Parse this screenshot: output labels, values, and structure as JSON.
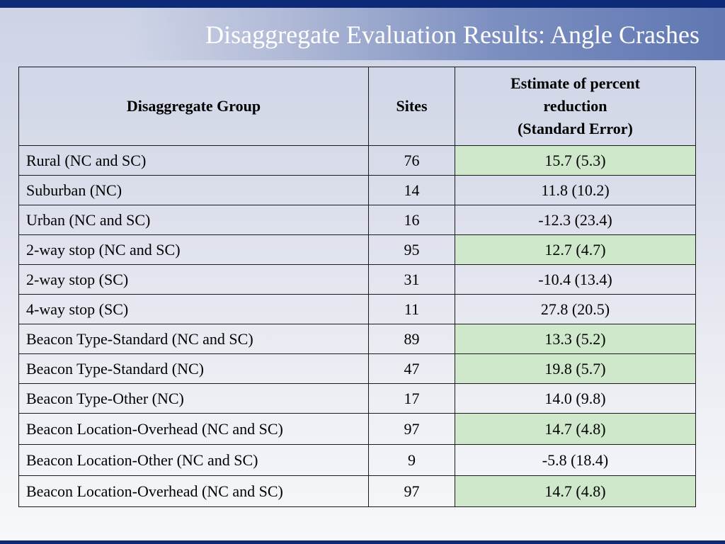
{
  "slide": {
    "title": "Disaggregate Evaluation Results: Angle Crashes"
  },
  "colors": {
    "top_bar": "#0d2a78",
    "highlight": "#cfe7cb",
    "title_text": "#ffffff"
  },
  "table": {
    "headers": {
      "group": "Disaggregate Group",
      "sites": "Sites",
      "estimate_line1": "Estimate of percent",
      "estimate_line2": "reduction",
      "estimate_line3": "(Standard Error)"
    },
    "rows": [
      {
        "group": "Rural (NC and SC)",
        "sites": "76",
        "estimate": "15.7 (5.3)",
        "highlighted": true
      },
      {
        "group": "Suburban (NC)",
        "sites": "14",
        "estimate": "11.8 (10.2)",
        "highlighted": false
      },
      {
        "group": "Urban (NC and SC)",
        "sites": "16",
        "estimate": "-12.3 (23.4)",
        "highlighted": false
      },
      {
        "group": "2-way stop (NC and SC)",
        "sites": "95",
        "estimate": "12.7 (4.7)",
        "highlighted": true
      },
      {
        "group": "2-way stop (SC)",
        "sites": "31",
        "estimate": "-10.4 (13.4)",
        "highlighted": false
      },
      {
        "group": "4-way stop (SC)",
        "sites": "11",
        "estimate": "27.8 (20.5)",
        "highlighted": false
      },
      {
        "group": "Beacon Type-Standard (NC and SC)",
        "sites": "89",
        "estimate": "13.3 (5.2)",
        "highlighted": true
      },
      {
        "group": "Beacon Type-Standard (NC)",
        "sites": "47",
        "estimate": "19.8 (5.7)",
        "highlighted": true
      },
      {
        "group": "Beacon Type-Other (NC)",
        "sites": "17",
        "estimate": "14.0 (9.8)",
        "highlighted": false
      },
      {
        "group": "Beacon Location-Overhead (NC and SC)",
        "sites": "97",
        "estimate": "14.7 (4.8)",
        "highlighted": true
      },
      {
        "group": "Beacon Location-Other (NC and SC)",
        "sites": "9",
        "estimate": "-5.8 (18.4)",
        "highlighted": false
      },
      {
        "group": "Beacon Location-Overhead (NC and SC)",
        "sites": "97",
        "estimate": "14.7 (4.8)",
        "highlighted": true
      }
    ]
  }
}
